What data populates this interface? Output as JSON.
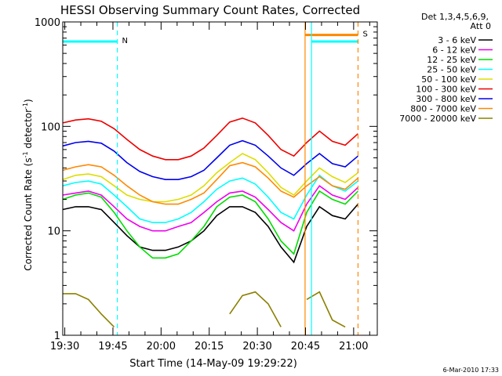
{
  "chart_data": {
    "type": "line",
    "title": "HESSI Observing Summary Count Rates, Corrected",
    "xlabel": "Start Time (14-May-09 19:29:22)",
    "ylabel_main": "Corrected Count Rate (s",
    "ylabel_sup1": "-1",
    "ylabel_mid": " detector",
    "ylabel_sup2": "-1",
    "ylabel_end": ")",
    "y_scale": "log",
    "ylim": [
      1,
      1000
    ],
    "xlim_minutes": [
      0,
      98
    ],
    "y_tick_labels": [
      "1",
      "10",
      "100",
      "1000"
    ],
    "x_tick_labels": [
      "19:30",
      "19:45",
      "20:00",
      "20:15",
      "20:30",
      "20:45",
      "21:00"
    ],
    "legend_header_1": "Det 1,3,4,5,6,9,",
    "legend_header_2": "Att 0",
    "footer_date": "6-Mar-2010 17:33",
    "time_minutes": [
      0,
      4,
      8,
      12,
      16,
      20,
      24,
      28,
      32,
      36,
      40,
      44,
      48,
      52,
      56,
      60,
      64,
      68,
      72,
      76,
      80,
      84,
      88,
      92,
      96
    ],
    "series": [
      {
        "name": "3 - 6 keV",
        "color": "#000000",
        "values": [
          16,
          17,
          17,
          16,
          12,
          9,
          7,
          6.5,
          6.5,
          7,
          8,
          10,
          14,
          17,
          17,
          15,
          11,
          7,
          5,
          11,
          17,
          14,
          13,
          18,
          null
        ]
      },
      {
        "name": "6 - 12 keV",
        "color": "#ee00ee",
        "values": [
          22,
          23,
          24,
          22,
          17,
          13,
          11,
          10,
          10,
          11,
          12,
          15,
          19,
          23,
          24,
          21,
          16,
          12,
          10,
          18,
          27,
          22,
          20,
          26,
          null
        ]
      },
      {
        "name": "12 - 25 keV",
        "color": "#00dd00",
        "values": [
          20,
          22,
          23,
          21,
          15,
          10,
          7,
          5.5,
          5.5,
          6,
          8,
          11,
          17,
          21,
          22,
          19,
          13,
          8,
          6,
          15,
          24,
          20,
          18,
          24,
          null
        ]
      },
      {
        "name": "25 - 50 keV",
        "color": "#00ffff",
        "values": [
          27,
          29,
          30,
          28,
          22,
          17,
          13,
          12,
          12,
          13,
          15,
          19,
          25,
          30,
          32,
          28,
          21,
          15,
          13,
          22,
          34,
          27,
          24,
          30,
          null
        ]
      },
      {
        "name": "50 - 100 keV",
        "color": "#dddd00",
        "values": [
          31,
          34,
          35,
          33,
          27,
          22,
          20,
          19,
          19,
          20,
          22,
          27,
          36,
          45,
          55,
          48,
          36,
          26,
          22,
          30,
          40,
          33,
          29,
          36,
          null
        ]
      },
      {
        "name": "100 - 300 keV",
        "color": "#ee0000",
        "values": [
          108,
          115,
          118,
          112,
          95,
          75,
          60,
          52,
          48,
          48,
          52,
          62,
          82,
          110,
          120,
          108,
          82,
          60,
          52,
          70,
          90,
          72,
          66,
          85,
          null
        ]
      },
      {
        "name": "300 - 800 keV",
        "color": "#0000ee",
        "values": [
          65,
          70,
          72,
          69,
          58,
          45,
          37,
          33,
          31,
          31,
          33,
          38,
          50,
          66,
          73,
          66,
          52,
          40,
          34,
          44,
          55,
          44,
          41,
          52,
          null
        ]
      },
      {
        "name": "800 - 7000 keV",
        "color": "#ff8800",
        "values": [
          38,
          41,
          43,
          41,
          34,
          27,
          22,
          19,
          18,
          18,
          20,
          23,
          31,
          42,
          45,
          41,
          32,
          24,
          21,
          27,
          33,
          27,
          25,
          32,
          null
        ]
      },
      {
        "name": "7000 - 20000 keV",
        "color": "#8b8000",
        "values": [
          2.5,
          2.5,
          2.2,
          1.6,
          1.2,
          null,
          null,
          null,
          null,
          null,
          null,
          null,
          null,
          1.6,
          2.4,
          2.6,
          2.0,
          1.2,
          null,
          2.2,
          2.6,
          1.4,
          1.2,
          null,
          null
        ]
      }
    ],
    "annotations": [
      {
        "label": "N",
        "color": "#00ffff",
        "x_start_min": 0,
        "x_end_min": 17,
        "y": 650
      },
      {
        "label": "S",
        "color": "#ff8800",
        "x_start_min": 75,
        "x_end_min": 92,
        "y": 750
      }
    ],
    "segments": [
      {
        "color": "#00ffff",
        "x_start_min": 0,
        "x_end_min": 17,
        "y": 650
      },
      {
        "color": "#00ffff",
        "x_start_min": 77.5,
        "x_end_min": 92,
        "y": 650
      },
      {
        "color": "#ff8800",
        "x_start_min": 75.5,
        "x_end_min": 92,
        "y": 750
      }
    ],
    "vertical_markers": [
      {
        "color": "#00ffff",
        "x_min": 17,
        "style": "dashed"
      },
      {
        "color": "#00ffff",
        "x_min": 77.5,
        "style": "solid"
      },
      {
        "color": "#ff8800",
        "x_min": 75.5,
        "style": "solid"
      },
      {
        "color": "#ff8800",
        "x_min": 92,
        "style": "dashed"
      }
    ]
  }
}
